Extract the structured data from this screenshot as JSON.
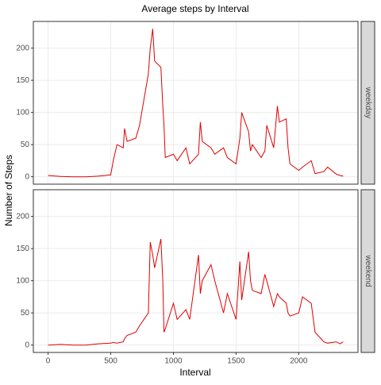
{
  "chart_data": {
    "type": "line",
    "title": "Average steps by Interval",
    "x_label": "Interval",
    "y_label": "Number of Steps",
    "facet": true,
    "grid": true,
    "x": [
      0,
      100,
      200,
      300,
      400,
      500,
      520,
      550,
      600,
      610,
      630,
      700,
      730,
      800,
      815,
      835,
      850,
      900,
      915,
      925,
      935,
      1000,
      1030,
      1100,
      1130,
      1200,
      1215,
      1230,
      1300,
      1330,
      1400,
      1430,
      1500,
      1530,
      1545,
      1600,
      1615,
      1630,
      1700,
      1730,
      1745,
      1800,
      1830,
      1845,
      1900,
      1915,
      1930,
      2000,
      2030,
      2100,
      2130,
      2200,
      2230,
      2300,
      2330,
      2355
    ],
    "series": [
      {
        "name": "weekday",
        "color": "#e00000",
        "values": [
          2,
          0.5,
          0,
          0,
          1,
          3,
          25,
          50,
          45,
          75,
          55,
          60,
          80,
          160,
          200,
          230,
          180,
          170,
          110,
          80,
          30,
          35,
          25,
          45,
          20,
          35,
          85,
          55,
          45,
          35,
          45,
          30,
          20,
          60,
          100,
          70,
          40,
          50,
          30,
          40,
          80,
          45,
          110,
          85,
          90,
          45,
          20,
          10,
          15,
          25,
          5,
          8,
          15,
          4,
          2,
          1
        ]
      },
      {
        "name": "weekend",
        "color": "#e00000",
        "values": [
          0,
          1,
          0,
          0,
          2,
          3,
          4,
          3,
          5,
          10,
          15,
          20,
          30,
          50,
          160,
          140,
          120,
          165,
          100,
          20,
          25,
          65,
          40,
          55,
          40,
          140,
          80,
          100,
          125,
          100,
          50,
          80,
          40,
          130,
          70,
          145,
          100,
          85,
          80,
          110,
          100,
          60,
          80,
          75,
          65,
          50,
          45,
          50,
          75,
          65,
          20,
          5,
          3,
          5,
          2,
          5
        ]
      }
    ],
    "xlim": [
      -117.75,
      2472.75
    ],
    "xticks": [
      0,
      500,
      1000,
      1500,
      2000
    ],
    "ylim": [
      -11.5,
      241.5
    ],
    "yticks": [
      0,
      50,
      100,
      150,
      200
    ]
  }
}
